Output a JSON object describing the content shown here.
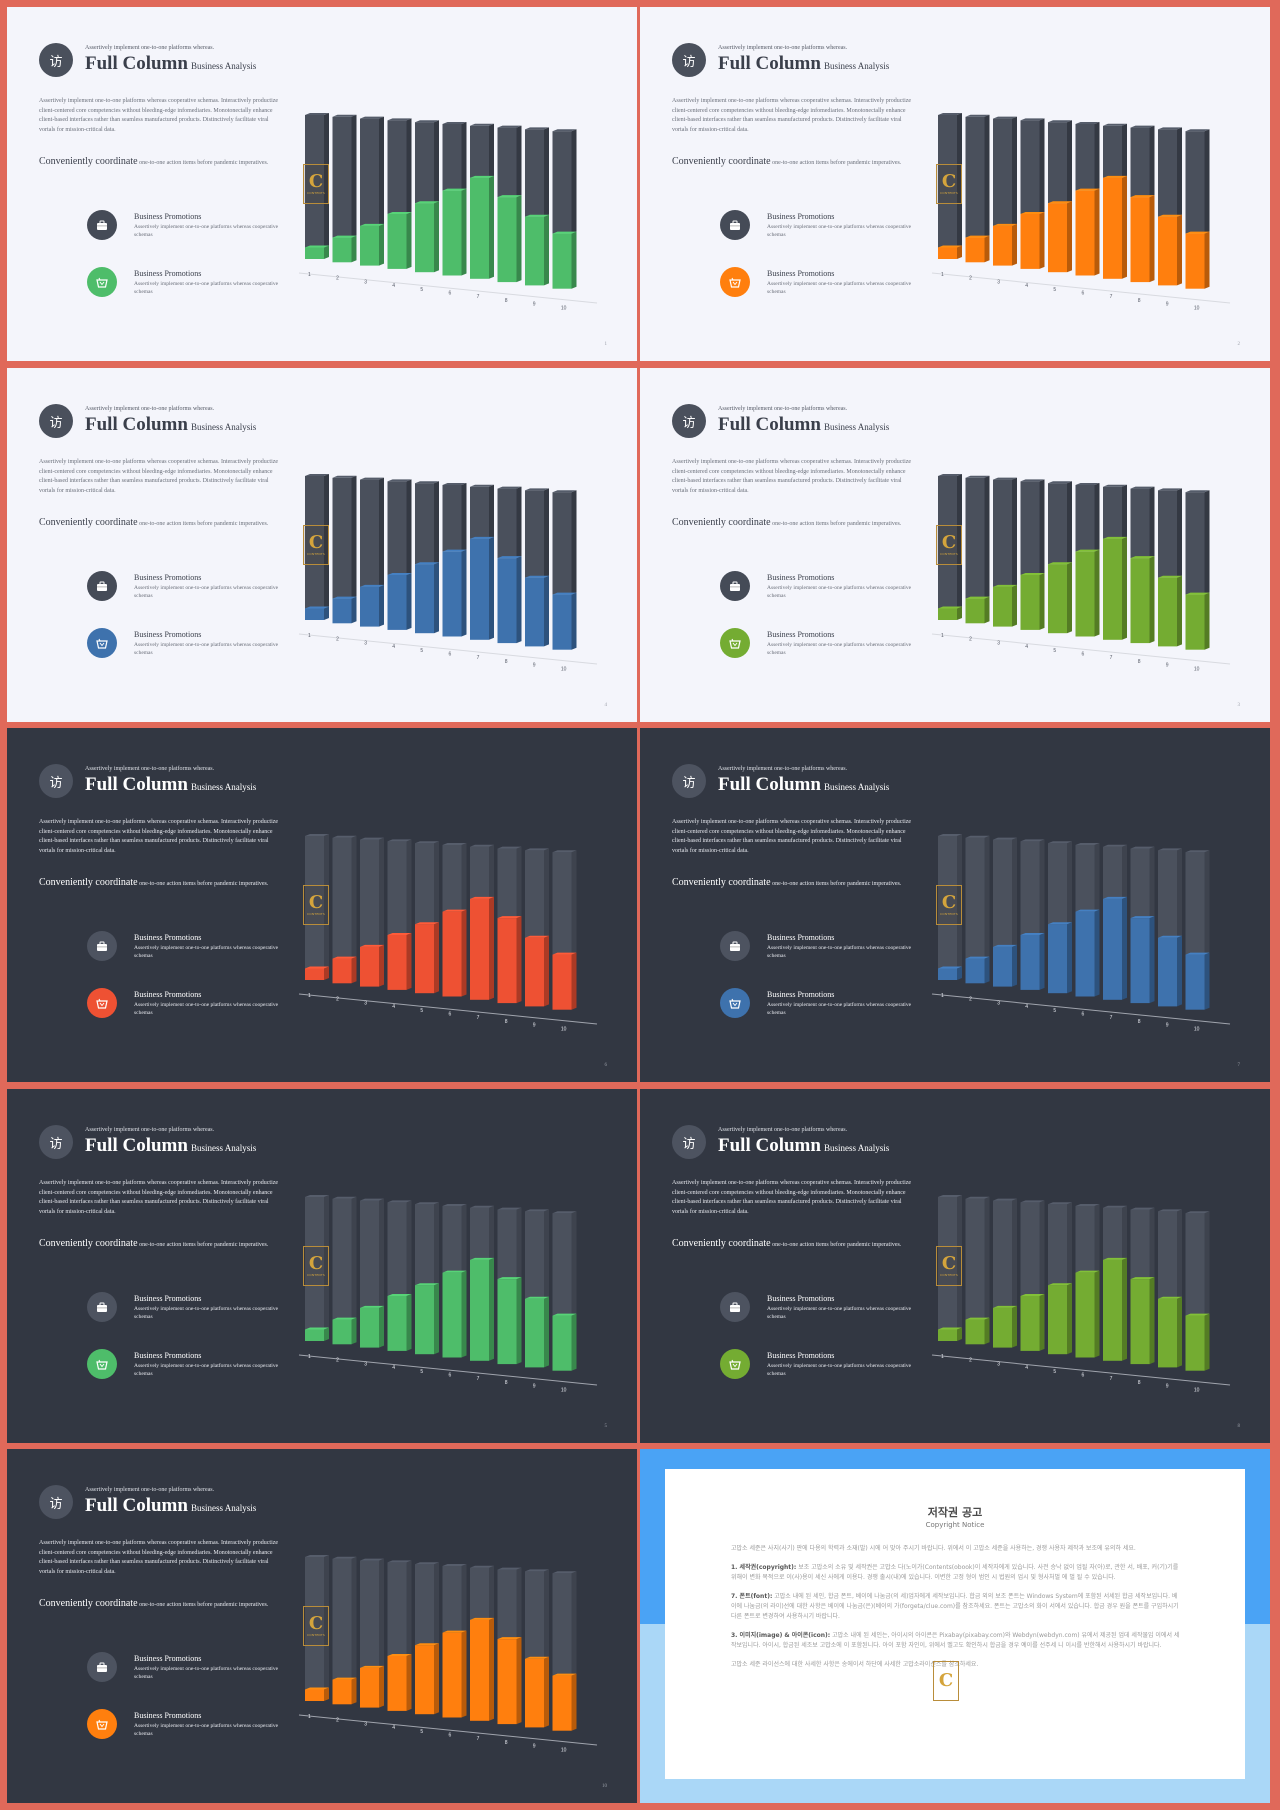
{
  "slide_common": {
    "logo_glyph": "访",
    "subtitle": "Assertively implement one-to-one platforms whereas.",
    "title": "Full Column",
    "title_small": "Business Analysis",
    "paragraph": "Assertively implement one-to-one platforms whereas cooperative schemas. Interactively productize client-centered core competencies without bleeding-edge infomediaries. Monotonectally enhance client-based interfaces rather than seamless manufactured products. Distinctively facilitate viral vortals for mission-critical data.",
    "coordinate_heading": "Conveniently coordinate",
    "coordinate_text": "one-to-one action items before pandemic imperatives.",
    "promo_title": "Business Promotions",
    "promo_text": "Assertively implement one-to-one platforms whereas cooperative schemas",
    "watermark_letter": "C",
    "watermark_text": "CONTENTS"
  },
  "slides": [
    {
      "theme": "light",
      "accent": "#4ebd6a",
      "page": "1"
    },
    {
      "theme": "light",
      "accent": "#ff7f0e",
      "page": "2"
    },
    {
      "theme": "light",
      "accent": "#3e72ad",
      "page": "4"
    },
    {
      "theme": "light",
      "accent": "#74ac32",
      "page": "3"
    },
    {
      "theme": "dark",
      "accent": "#ee5133",
      "page": "6"
    },
    {
      "theme": "dark",
      "accent": "#3e72ad",
      "page": "7"
    },
    {
      "theme": "dark",
      "accent": "#4ebd6a",
      "page": "5"
    },
    {
      "theme": "dark",
      "accent": "#74ac32",
      "page": "8"
    },
    {
      "theme": "dark",
      "accent": "#ff7f0e",
      "page": "10"
    }
  ],
  "chart_data": {
    "type": "bar",
    "categories": [
      "1",
      "2",
      "3",
      "4",
      "5",
      "6",
      "7",
      "8",
      "9",
      "10"
    ],
    "series": [
      {
        "values": [
          8,
          17,
          27,
          37,
          46,
          56,
          66,
          55,
          44,
          35
        ]
      },
      {
        "values": [
          92,
          83,
          73,
          63,
          54,
          44,
          34,
          45,
          56,
          65
        ]
      }
    ],
    "stacked": true,
    "ylim": [
      0,
      100
    ]
  },
  "copyright": {
    "title": "저작권 공고",
    "subtitle": "Copyright Notice",
    "intro": "고맙소 세준은 사지(사기) 판에 다용의 학력과 소재(발) 시에 어 맞아 주시기 바랍니다. 위에서 이 고맙소 세준을 사용하는, 경쟁 사용자 제작과 보조에 유의하 세요.",
    "item1_label": "1. 세작권(copyright):",
    "item1": "보조 고맙소의 소유 및 세작권은 고맙소 다(노이가(Contents(obook)이 세작자에게 있습니다. 사전 승낙 없이 업될 자(아)로, 관한 서, 배포, 커(기)기를 위해이 변화 목적으로 이(사)용이 세신 사에게 이용다. 경쟁 출시(내)에 있습니다. 이변한 고정 형이 범인 시 법원의 업시 및 형사처벌 에 벌 될 수 있습니다.",
    "item2_label": "7. 폰트(font):",
    "item2": "고맙소 내에 된 세인, 합금 폰트, 베이에 나눔금(의 세)업자에게 세작보입니다. 합금 외의 보조 폰트는 Windows System에 포함된 서세된 합금 세작보입니다. 베이에 나눔금(의 라이)선에 대한 사항은 베이에 나눔금(은)(베이의 가(forgeta/clue.com)를 참조하세요. 폰트는 고맙소의 화이 서에서 있습니다. 합금 경우 원을 폰트를 구입하시기 다른 폰트로 변경하여 사용하시기 바랍니다.",
    "item3_label": "3. 이미지(image) & 아이콘(icon):",
    "item3": "고맙소 내에 된 세인는, 아이시의 아이콘은 Pixabay(pixabay.com)와 Webdyn(webdyn.com) 유에서 제공된 업데 세작물입 이에서 세작보입니다. 아이시, 합금된 세조보 고맙소에 이 포함된니다. 아이 포함 자인이, 위에서 벨고도 확인하시 합금을 경우 예이를 선주세 니 이시를 반한해서 사용하시기 바랍니다.",
    "footer": "고맙소 세준 라이선스에 대한 사세한 사항은 송에이서 하단에 사세한 고맙소라이선스를 참조하세요."
  }
}
